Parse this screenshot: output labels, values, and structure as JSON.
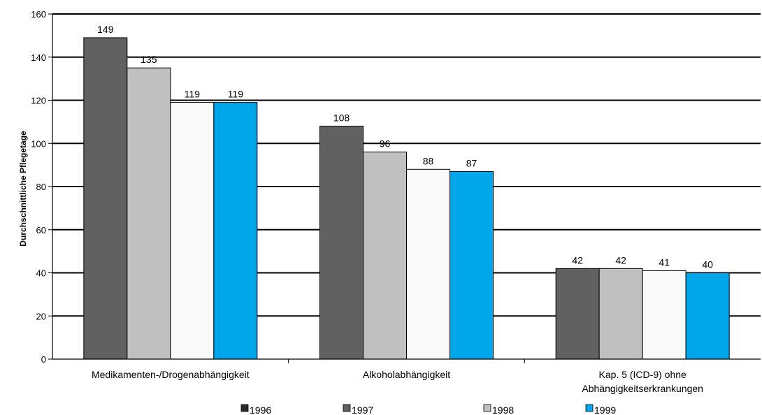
{
  "chart_data": {
    "type": "bar",
    "title": "",
    "xlabel": "",
    "ylabel": "Durchschnittliche Pflegetage",
    "ylim": [
      0,
      160
    ],
    "yticks": [
      "0",
      "20",
      "40",
      "60",
      "80",
      "100",
      "120",
      "140",
      "160"
    ],
    "grid": true,
    "legend_position": "bottom",
    "categories": [
      [
        "Medikamenten-/Drogenabhängigkeit"
      ],
      [
        "Alkoholabhängigkeit"
      ],
      [
        "Kap. 5 (ICD-9) ohne",
        "Abhängigkeitserkrankungen"
      ]
    ],
    "series": [
      {
        "name": "1996",
        "color": "#616161",
        "values": [
          149,
          108,
          42
        ]
      },
      {
        "name": "1997",
        "color": "#c0c0c0",
        "values": [
          135,
          96,
          42
        ]
      },
      {
        "name": "1998",
        "color": "#fafafa",
        "values": [
          119,
          88,
          41
        ]
      },
      {
        "name": "1999",
        "color": "#00a6ea",
        "values": [
          119,
          87,
          40
        ]
      }
    ],
    "legend": [
      {
        "label": "1996",
        "color": "#2a2a2a"
      },
      {
        "label": "1997",
        "color": "#616161"
      },
      {
        "label": "1998",
        "color": "#c0c0c0"
      },
      {
        "label": "1999",
        "color": "#00a6ea"
      }
    ]
  }
}
